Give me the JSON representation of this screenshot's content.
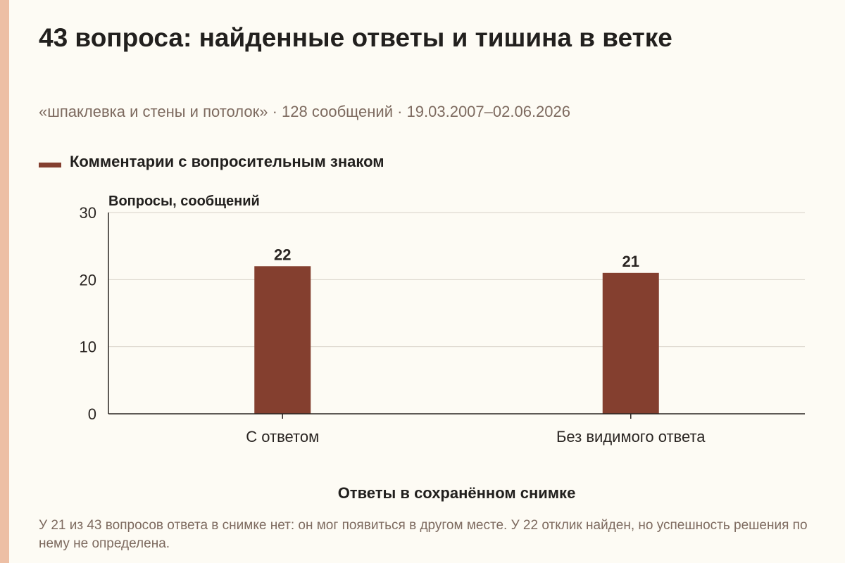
{
  "title": "43 вопроса: найденные ответы и тишина в ветке",
  "subtitle": "«шпаклевка и стены и потолок» · 128 сообщений · 19.03.2007–02.06.2026",
  "legend": {
    "label": "Комментарии с вопросительным знаком",
    "color": "#843f2f"
  },
  "caption": "У 21 из 43 вопросов ответа в снимке нет: он мог появиться в другом месте. У 22 отклик найден, но успешность решения по нему не определена.",
  "colors": {
    "bar": "#843f2f",
    "grid": "#d8d2c8",
    "axis": "#2a2522",
    "accent": "#edbfa5"
  },
  "chart_data": {
    "type": "bar",
    "categories": [
      "С ответом",
      "Без видимого ответа"
    ],
    "series": [
      {
        "name": "Комментарии с вопросительным знаком",
        "values": [
          22,
          21
        ]
      }
    ],
    "ylabel": "Вопросы, сообщений",
    "xlabel": "Ответы в сохранённом снимке",
    "ylim": [
      0,
      30
    ],
    "yticks": [
      0,
      10,
      20,
      30
    ],
    "grid": true,
    "legend_position": "top-left"
  }
}
